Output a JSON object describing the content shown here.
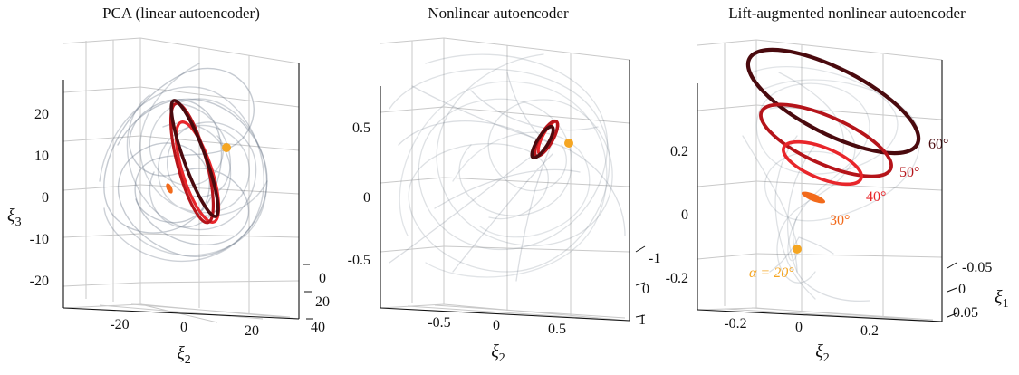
{
  "colors": {
    "trajectory": "#59677a",
    "orbit_dark": "#4a0a0e",
    "orbit_mid": "#b5141a",
    "orbit_light": "#e8262b",
    "orbit_orange": "#f26a1b",
    "fixed_point": "#f5a623",
    "annotation": "#f5a623"
  },
  "chart_data": [
    {
      "type": "scatter",
      "title": "PCA (linear autoencoder)",
      "projection": "3d",
      "grid": true,
      "xlabel": "ξ2",
      "xlabel_main": "ξ",
      "xlabel_sub": "2",
      "zlabel": "ξ3",
      "zlabel_main": "ξ",
      "zlabel_sub": "3",
      "ylabel": "",
      "x_ticks": [
        "-20",
        "0",
        "20"
      ],
      "z_ticks": [
        "20",
        "10",
        "0",
        "-10",
        "-20"
      ],
      "y_ticks": [
        "0",
        "20",
        "40"
      ],
      "series": [
        {
          "kind": "trajectories",
          "values": "background turbulent trajectories"
        },
        {
          "kind": "orbit",
          "color": "#e8262b",
          "values": [
            0,
            0
          ]
        },
        {
          "kind": "orbit",
          "color": "#b5141a",
          "values": [
            0,
            0
          ]
        },
        {
          "kind": "orbit",
          "color": "#4a0a0e",
          "values": [
            0,
            0
          ]
        },
        {
          "kind": "point",
          "color": "#f26a1b",
          "values": [
            0,
            0
          ]
        },
        {
          "kind": "point",
          "color": "#f5a623",
          "values": [
            0,
            0
          ]
        }
      ]
    },
    {
      "type": "scatter",
      "title": "Nonlinear autoencoder",
      "projection": "3d",
      "grid": true,
      "xlabel": "ξ2",
      "xlabel_main": "ξ",
      "xlabel_sub": "2",
      "zlabel": "",
      "ylabel": "",
      "x_ticks": [
        "-0.5",
        "0",
        "0.5"
      ],
      "z_ticks": [
        "0.5",
        "0",
        "-0.5"
      ],
      "y_ticks": [
        "-1",
        "0",
        "1"
      ],
      "series": [
        {
          "kind": "trajectories",
          "values": "background turbulent trajectories"
        },
        {
          "kind": "orbit",
          "color": "#4a0a0e",
          "values": [
            0,
            0
          ]
        },
        {
          "kind": "orbit",
          "color": "#b5141a",
          "values": [
            0,
            0
          ]
        },
        {
          "kind": "orbit",
          "color": "#e8262b",
          "values": [
            0,
            0
          ]
        },
        {
          "kind": "point",
          "color": "#f5a623",
          "values": [
            0,
            0
          ]
        }
      ]
    },
    {
      "type": "scatter",
      "title": "Lift-augmented nonlinear autoencoder",
      "projection": "3d",
      "grid": true,
      "xlabel": "ξ2",
      "xlabel_main": "ξ",
      "xlabel_sub": "2",
      "ylabel": "ξ1",
      "ylabel_main": "ξ",
      "ylabel_sub": "1",
      "zlabel": "",
      "x_ticks": [
        "-0.2",
        "0",
        "0.2"
      ],
      "z_ticks": [
        "0.2",
        "0",
        "-0.2"
      ],
      "y_ticks": [
        "-0.05",
        "0",
        "0.05"
      ],
      "annotations": [
        "60°",
        "50°",
        "40°",
        "30°",
        "α = 20°"
      ],
      "series": [
        {
          "kind": "trajectories",
          "values": "background turbulent trajectories"
        },
        {
          "kind": "orbit",
          "name": "60°",
          "color": "#4a0a0e",
          "values": [
            0,
            0.23
          ]
        },
        {
          "kind": "orbit",
          "name": "50°",
          "color": "#b5141a",
          "values": [
            0,
            0.18
          ]
        },
        {
          "kind": "orbit",
          "name": "40°",
          "color": "#e8262b",
          "values": [
            0,
            0.12
          ]
        },
        {
          "kind": "point",
          "name": "30°",
          "color": "#f26a1b",
          "values": [
            0,
            0.03
          ]
        },
        {
          "kind": "point",
          "name": "α = 20°",
          "color": "#f5a623",
          "values": [
            0,
            -0.15
          ]
        }
      ]
    }
  ]
}
